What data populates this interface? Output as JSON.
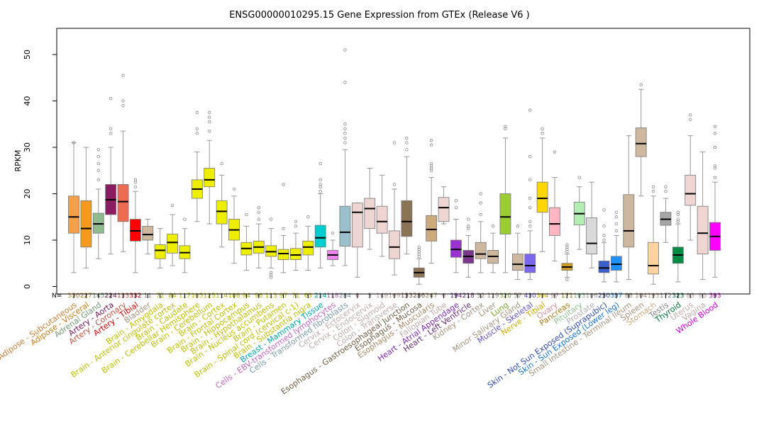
{
  "chart_data": {
    "type": "boxplot",
    "title": "ENSG00000010295.15 Gene Expression from GTEx (Release  V6 )",
    "ylabel": "RPKM",
    "ylim": [
      -2,
      55
    ],
    "yticks": [
      0,
      10,
      20,
      30,
      40,
      50
    ],
    "n_label": "N=",
    "categories": [
      {
        "name": "Adipose - Subcutaneous",
        "n": "350",
        "color": "#F5A04B",
        "stats": [
          3,
          11.5,
          15,
          19.5,
          31
        ],
        "outliers": [
          31
        ]
      },
      {
        "name": "Adipose - Visceral",
        "n": "227",
        "color": "#F59A1B",
        "stats": [
          4,
          8.5,
          12.5,
          18.5,
          30
        ],
        "outliers": []
      },
      {
        "name": "Adrenal Gland",
        "n": "145",
        "color": "#8FBC8F",
        "stats": [
          6,
          11.5,
          13.5,
          15.8,
          21
        ],
        "outliers": [
          23,
          25,
          26.5,
          28,
          29.5
        ]
      },
      {
        "name": "Artery - Aorta",
        "n": "224",
        "color": "#8B1C62",
        "stats": [
          7,
          15.5,
          18.7,
          22,
          30
        ],
        "outliers": [
          33,
          34,
          40.5
        ]
      },
      {
        "name": "Artery - Coronary",
        "n": "133",
        "color": "#EE6A50",
        "stats": [
          7.5,
          14,
          18.3,
          22,
          33.5
        ],
        "outliers": [
          39,
          40,
          45.5
        ]
      },
      {
        "name": "Artery - Tibial",
        "n": "332",
        "color": "#FF0000",
        "stats": [
          3,
          9.8,
          12,
          14.5,
          20.5
        ],
        "outliers": [
          21.5,
          22.5,
          23
        ]
      },
      {
        "name": "Bladder",
        "n": "11",
        "color": "#CDB79E",
        "stats": [
          7,
          10,
          11.2,
          13,
          14.5
        ],
        "outliers": []
      },
      {
        "name": "Brain - Amygdala",
        "n": "72",
        "color": "#EEEE00",
        "stats": [
          4,
          6,
          7.8,
          9,
          12.5
        ],
        "outliers": []
      },
      {
        "name": "Brain - Anterior cingulate cortex",
        "n": "84",
        "color": "#EEEE00",
        "stats": [
          4.5,
          7.2,
          9.5,
          11.3,
          15.5
        ],
        "outliers": [
          17.5
        ]
      },
      {
        "name": "Brain - Caudate",
        "n": "117",
        "color": "#EEEE00",
        "stats": [
          3,
          6,
          7.3,
          8.8,
          12.5
        ],
        "outliers": [
          14.5
        ]
      },
      {
        "name": "Brain - Cerebellar Hemisphere",
        "n": "105",
        "color": "#EEEE00",
        "stats": [
          14,
          19,
          21,
          23,
          29
        ],
        "outliers": [
          33,
          34,
          37.5
        ]
      },
      {
        "name": "Brain - Cerebellum",
        "n": "125",
        "color": "#EEEE00",
        "stats": [
          13.5,
          21.5,
          23,
          25.5,
          31.5
        ],
        "outliers": [
          33.5,
          35.5,
          36.5,
          37.5
        ]
      },
      {
        "name": "Brain - Cortex",
        "n": "114",
        "color": "#EEEE00",
        "stats": [
          8.5,
          13.5,
          16.2,
          18.5,
          24
        ],
        "outliers": [
          26.5
        ]
      },
      {
        "name": "Brain - Frontal Cortex",
        "n": "108",
        "color": "#EEEE00",
        "stats": [
          5,
          10,
          12.2,
          14.5,
          19.5
        ],
        "outliers": [
          21
        ]
      },
      {
        "name": "Brain - Hippocampus",
        "n": "94",
        "color": "#EEEE00",
        "stats": [
          3.5,
          6.8,
          8.2,
          9.5,
          13
        ],
        "outliers": [
          15.5
        ]
      },
      {
        "name": "Brain - Hypothalamus",
        "n": "96",
        "color": "#EEEE00",
        "stats": [
          4,
          7.2,
          8.5,
          9.8,
          13.5
        ],
        "outliers": [
          14.5,
          16,
          17
        ]
      },
      {
        "name": "Brain - Nucleus accumbens",
        "n": "113",
        "color": "#EEEE00",
        "stats": [
          4,
          6.5,
          7.5,
          8.8,
          12.5
        ],
        "outliers": [
          2,
          2.5,
          3,
          14.5
        ]
      },
      {
        "name": "Brain - Putamen",
        "n": "97",
        "color": "#EEEE00",
        "stats": [
          3,
          5.8,
          7.1,
          8,
          11
        ],
        "outliers": [
          12.5,
          22
        ]
      },
      {
        "name": "Brain - Spinal cord (cervical c-1)",
        "n": "71",
        "color": "#EEEE00",
        "stats": [
          3.5,
          5.8,
          6.8,
          8.2,
          11.5
        ],
        "outliers": [
          13,
          14
        ]
      },
      {
        "name": "Brain - Substantia nigra",
        "n": "63",
        "color": "#EEEE00",
        "stats": [
          3.5,
          6.8,
          8.5,
          9.8,
          13
        ],
        "outliers": [
          15
        ]
      },
      {
        "name": "Breast - Mammary Tissue",
        "n": "214",
        "color": "#00CDCD",
        "stats": [
          4,
          8.5,
          10.5,
          13.2,
          20
        ],
        "outliers": [
          20.5,
          21.5,
          22,
          23,
          26.5
        ]
      },
      {
        "name": "Cells - EBV-transformed lymphocytes",
        "n": "118",
        "color": "#EE82EE",
        "stats": [
          4.5,
          5.8,
          6.8,
          7.8,
          10
        ],
        "outliers": [
          11.5
        ]
      },
      {
        "name": "Cells - Transformed fibroblasts",
        "n": "284",
        "color": "#9AC0CD",
        "stats": [
          4.5,
          8.7,
          11.7,
          17.3,
          29.5
        ],
        "outliers": [
          31,
          32,
          33,
          34,
          35,
          44,
          51
        ]
      },
      {
        "name": "Cervix - Ectocervix",
        "n": "6",
        "color": "#EED5D2",
        "stats": [
          2,
          8.5,
          16,
          18,
          18
        ],
        "outliers": []
      },
      {
        "name": "Cervix - Endocervix",
        "n": "5",
        "color": "#EED5D2",
        "stats": [
          8,
          12.5,
          16.8,
          19,
          25.5
        ],
        "outliers": []
      },
      {
        "name": "Colon - Sigmoid",
        "n": "149",
        "color": "#EED5D2",
        "stats": [
          6.5,
          11.5,
          14,
          17.3,
          24
        ],
        "outliers": []
      },
      {
        "name": "Colon - Transverse",
        "n": "169",
        "color": "#EED5D2",
        "stats": [
          2.5,
          6,
          8.5,
          12,
          21
        ],
        "outliers": [
          22,
          31
        ]
      },
      {
        "name": "Esophagus - Gastroesophageal Junction",
        "n": "153",
        "color": "#8B7355",
        "stats": [
          7,
          10.8,
          14,
          18.5,
          28
        ],
        "outliers": [
          29.5,
          31,
          32
        ]
      },
      {
        "name": "Esophagus - Mucosa",
        "n": "286",
        "color": "#8B7355",
        "stats": [
          0.5,
          2,
          3,
          4,
          6
        ],
        "outliers": [
          6.5,
          7,
          7.5,
          8,
          8.5
        ]
      },
      {
        "name": "Esophagus - Muscularis",
        "n": "247",
        "color": "#CDAA7D",
        "stats": [
          5,
          9.8,
          12.3,
          15.3,
          23.5
        ],
        "outliers": [
          25,
          25.5,
          26,
          26.5,
          30.5,
          31.5
        ]
      },
      {
        "name": "Fallopian Tube",
        "n": "6",
        "color": "#EED5D2",
        "stats": [
          13.5,
          14,
          17,
          19.2,
          21.5
        ],
        "outliers": []
      },
      {
        "name": "Heart - Atrial Appendage",
        "n": "194",
        "color": "#9A32CD",
        "stats": [
          3,
          6.3,
          8,
          10,
          14.5
        ],
        "outliers": [
          17,
          18.5
        ]
      },
      {
        "name": "Heart - Left Ventricle",
        "n": "218",
        "color": "#7A378B",
        "stats": [
          2,
          5,
          6.5,
          7.8,
          11
        ],
        "outliers": [
          12.5,
          13,
          14.5
        ]
      },
      {
        "name": "Kidney - Cortex",
        "n": "32",
        "color": "#CDB79E",
        "stats": [
          3,
          6,
          7,
          9.5,
          14
        ],
        "outliers": [
          15.5,
          18,
          20
        ]
      },
      {
        "name": "Liver",
        "n": "119",
        "color": "#CDB79E",
        "stats": [
          3,
          5,
          6.5,
          7.8,
          11.5
        ],
        "outliers": [
          13
        ]
      },
      {
        "name": "Lung",
        "n": "320",
        "color": "#9ACD32",
        "stats": [
          3,
          11.3,
          15,
          20,
          32
        ],
        "outliers": [
          34,
          34.5
        ]
      },
      {
        "name": "Minor Salivary Gland",
        "n": "57",
        "color": "#CDB79E",
        "stats": [
          1.5,
          3.5,
          4.8,
          7,
          11.5
        ],
        "outliers": [
          13
        ]
      },
      {
        "name": "Muscle - Skeletal",
        "n": "430",
        "color": "#7A67EE",
        "stats": [
          1.5,
          3,
          4.5,
          7,
          12
        ],
        "outliers": [
          13,
          14,
          17,
          19,
          23,
          28,
          38
        ]
      },
      {
        "name": "Nerve - Tibial",
        "n": "304",
        "color": "#FFD700",
        "stats": [
          7.5,
          16,
          19,
          22.5,
          32
        ],
        "outliers": [
          33,
          34
        ]
      },
      {
        "name": "Ovary",
        "n": "97",
        "color": "#FFB6C1",
        "stats": [
          5.5,
          11,
          13.5,
          17,
          23.5
        ],
        "outliers": [
          29
        ]
      },
      {
        "name": "Pancreas",
        "n": "171",
        "color": "#CD9B1D",
        "stats": [
          2,
          3.5,
          4.2,
          5,
          7
        ],
        "outliers": [
          1.5,
          7.5,
          8,
          8.5,
          9
        ]
      },
      {
        "name": "Pituitary",
        "n": "103",
        "color": "#B4EEB4",
        "stats": [
          8,
          13.3,
          15.7,
          18.2,
          21.5
        ],
        "outliers": [
          23.5
        ]
      },
      {
        "name": "Prostate",
        "n": "106",
        "color": "#D9D9D9",
        "stats": [
          4,
          7,
          9.3,
          14.8,
          22.5
        ],
        "outliers": []
      },
      {
        "name": "Skin - Not Sun Exposed (Suprapubic)",
        "n": "250",
        "color": "#3A5FCD",
        "stats": [
          1,
          3,
          4,
          5.5,
          9.5
        ],
        "outliers": [
          10,
          11,
          13,
          16.5
        ]
      },
      {
        "name": "Skin - Sun Exposed (Lower leg)",
        "n": "357",
        "color": "#1E90FF",
        "stats": [
          1,
          3.5,
          4.8,
          6.5,
          11
        ],
        "outliers": [
          12,
          13.5,
          15,
          16
        ]
      },
      {
        "name": "Small Intestine - Terminal Ileum",
        "n": "88",
        "color": "#CDB79E",
        "stats": [
          1.5,
          8.5,
          12,
          19.8,
          32.5
        ],
        "outliers": []
      },
      {
        "name": "Spleen",
        "n": "104",
        "color": "#CDB79E",
        "stats": [
          19.5,
          28,
          30.8,
          34.2,
          42.5
        ],
        "outliers": [
          43.5
        ]
      },
      {
        "name": "Stomach",
        "n": "193",
        "color": "#FFD39B",
        "stats": [
          0.5,
          2.7,
          4.5,
          9.5,
          19.5
        ],
        "outliers": [
          20.5,
          21.5
        ]
      },
      {
        "name": "Testis",
        "n": "172",
        "color": "#A6A6A6",
        "stats": [
          9.5,
          13.2,
          14.5,
          16,
          19
        ],
        "outliers": [
          20.5,
          21.5
        ]
      },
      {
        "name": "Thyroid",
        "n": "323",
        "color": "#008B45",
        "stats": [
          1,
          5,
          6.8,
          8.5,
          13.5
        ],
        "outliers": [
          14,
          14.5,
          15.5,
          16
        ]
      },
      {
        "name": "Uterus",
        "n": "83",
        "color": "#EED5D2",
        "stats": [
          10,
          17.5,
          20,
          24,
          32.5
        ],
        "outliers": [
          36,
          37
        ]
      },
      {
        "name": "Vagina",
        "n": "93",
        "color": "#EED5D2",
        "stats": [
          1.5,
          7,
          11.5,
          17.3,
          29
        ],
        "outliers": []
      },
      {
        "name": "Whole Blood",
        "n": "393",
        "color": "#FF00FF",
        "stats": [
          2,
          7.8,
          10.8,
          13.8,
          22.5
        ],
        "outliers": [
          23.5,
          25.5,
          26,
          30,
          33,
          34.5
        ]
      }
    ]
  }
}
